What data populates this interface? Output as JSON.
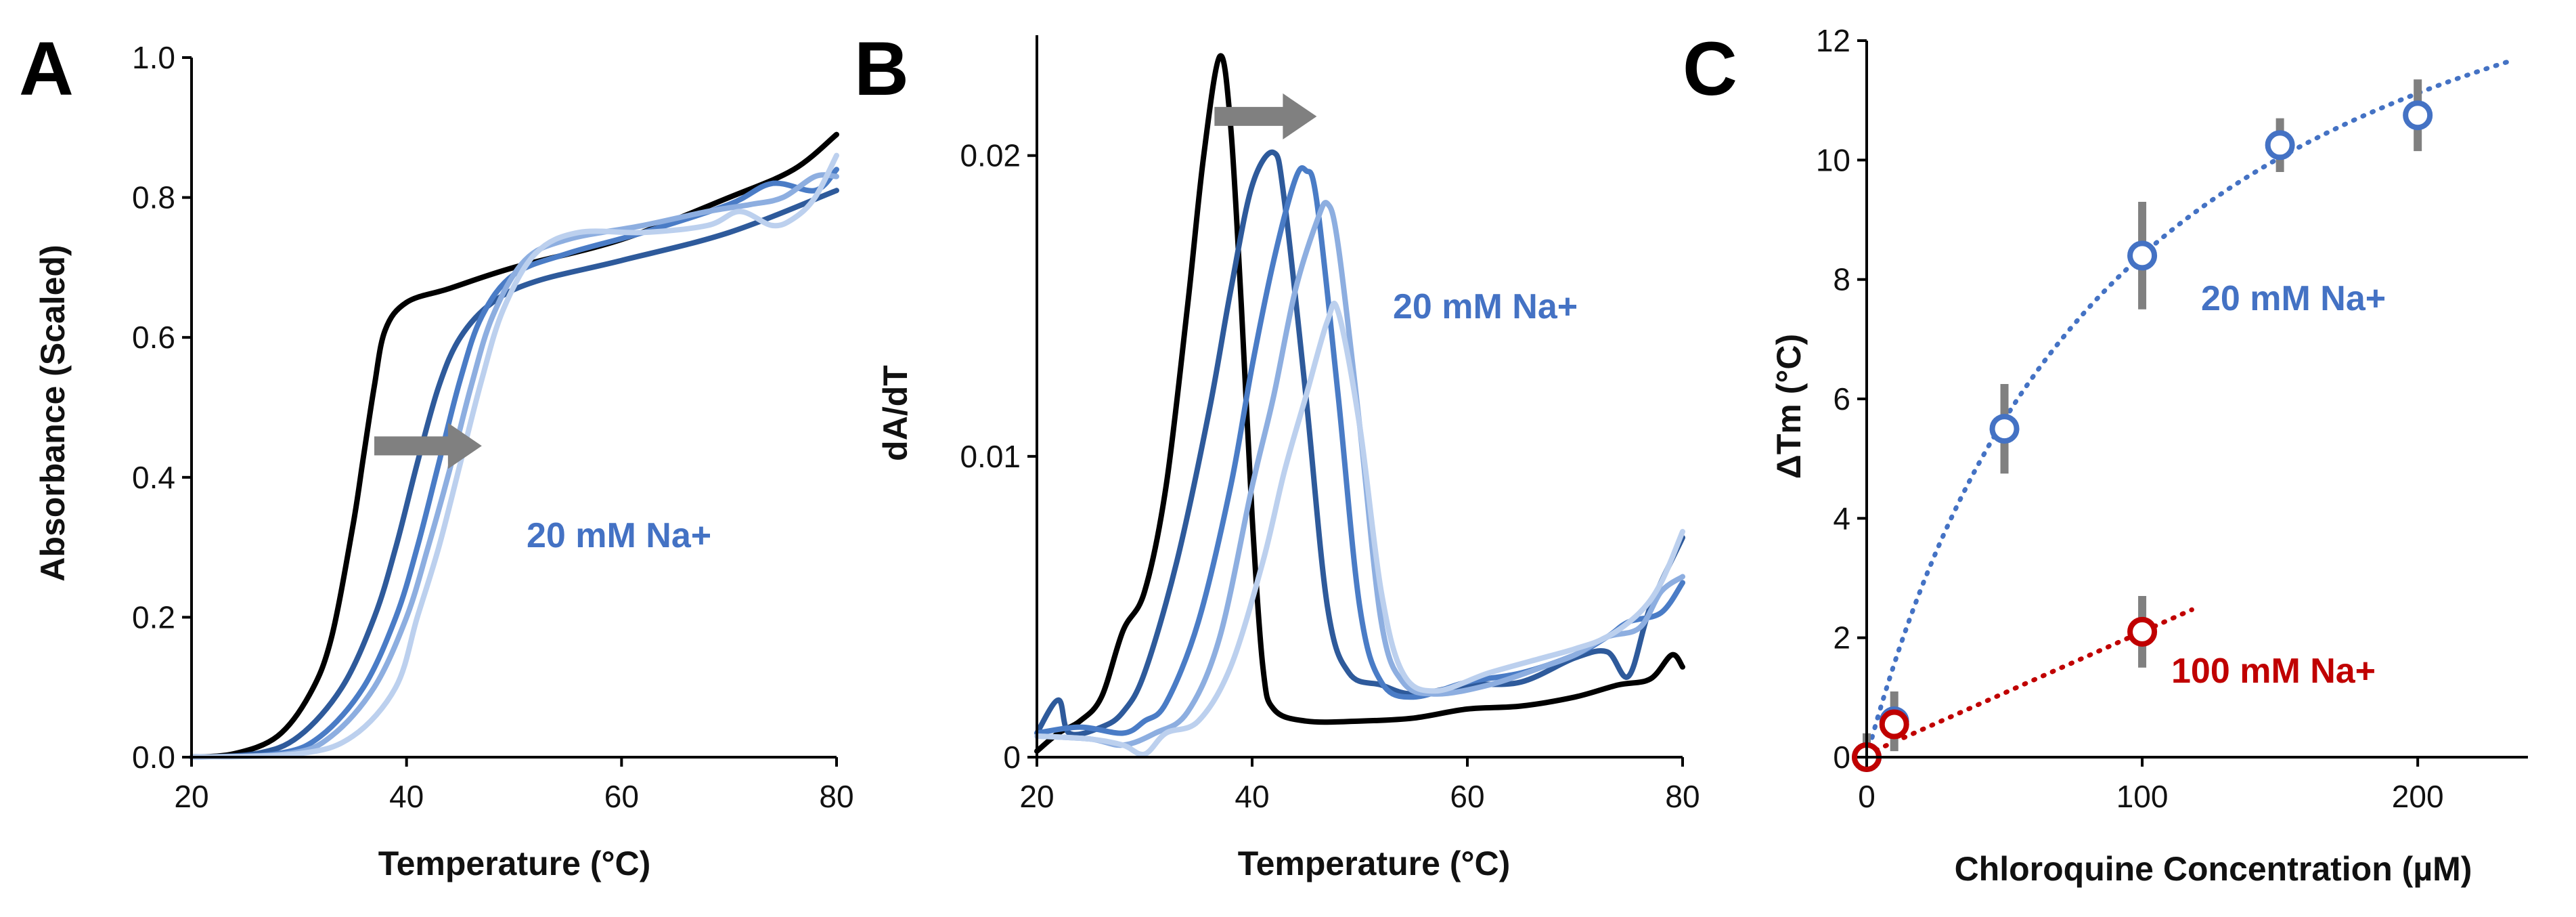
{
  "colors": {
    "black": "#000000",
    "c1": "#2e5a9b",
    "c2": "#4a7cc6",
    "c3": "#8daee0",
    "c4": "#bcd0ee",
    "blue_marker": "#4472c4",
    "red_marker": "#c00000",
    "error_bar": "#808080",
    "arrow": "#808080"
  },
  "chart_data": [
    {
      "panel": "A",
      "type": "line",
      "xlabel": "Temperature (°C)",
      "ylabel": "Absorbance  (Scaled)",
      "xlim": [
        20,
        80
      ],
      "ylim": [
        0,
        1.0
      ],
      "xticks": [
        "20",
        "40",
        "60",
        "80"
      ],
      "yticks": [
        "0.0",
        "0.2",
        "0.4",
        "0.6",
        "0.8",
        "1.0"
      ],
      "annotation": "20 mM Na+",
      "arrow": {
        "x_from": 37,
        "x_to": 47,
        "y": 0.445
      },
      "series": [
        {
          "color": "black",
          "points": [
            [
              20,
              0.0
            ],
            [
              24,
              0.005
            ],
            [
              28,
              0.03
            ],
            [
              31,
              0.09
            ],
            [
              33,
              0.17
            ],
            [
              35,
              0.33
            ],
            [
              36,
              0.43
            ],
            [
              37,
              0.53
            ],
            [
              38,
              0.61
            ],
            [
              40,
              0.65
            ],
            [
              44,
              0.67
            ],
            [
              50,
              0.7
            ],
            [
              60,
              0.74
            ],
            [
              70,
              0.8
            ],
            [
              76,
              0.84
            ],
            [
              80,
              0.89
            ]
          ]
        },
        {
          "color": "c1",
          "points": [
            [
              20,
              0.0
            ],
            [
              26,
              0.005
            ],
            [
              30,
              0.03
            ],
            [
              34,
              0.1
            ],
            [
              37,
              0.2
            ],
            [
              39,
              0.3
            ],
            [
              41,
              0.42
            ],
            [
              43,
              0.53
            ],
            [
              45,
              0.6
            ],
            [
              48,
              0.65
            ],
            [
              52,
              0.68
            ],
            [
              60,
              0.71
            ],
            [
              70,
              0.75
            ],
            [
              80,
              0.81
            ]
          ]
        },
        {
          "color": "c2",
          "points": [
            [
              20,
              0.0
            ],
            [
              28,
              0.005
            ],
            [
              32,
              0.03
            ],
            [
              36,
              0.1
            ],
            [
              39,
              0.2
            ],
            [
              41,
              0.3
            ],
            [
              43,
              0.42
            ],
            [
              45,
              0.54
            ],
            [
              47,
              0.63
            ],
            [
              50,
              0.69
            ],
            [
              55,
              0.72
            ],
            [
              62,
              0.75
            ],
            [
              70,
              0.79
            ],
            [
              74,
              0.82
            ],
            [
              78,
              0.81
            ],
            [
              80,
              0.84
            ]
          ]
        },
        {
          "color": "c3",
          "points": [
            [
              20,
              0.0
            ],
            [
              29,
              0.005
            ],
            [
              33,
              0.03
            ],
            [
              37,
              0.1
            ],
            [
              40,
              0.2
            ],
            [
              42,
              0.3
            ],
            [
              44,
              0.41
            ],
            [
              46,
              0.53
            ],
            [
              48,
              0.63
            ],
            [
              51,
              0.71
            ],
            [
              55,
              0.74
            ],
            [
              62,
              0.76
            ],
            [
              68,
              0.78
            ],
            [
              72,
              0.79
            ],
            [
              75,
              0.8
            ],
            [
              78,
              0.83
            ],
            [
              80,
              0.83
            ]
          ]
        },
        {
          "color": "c4",
          "points": [
            [
              20,
              0.0
            ],
            [
              30,
              0.005
            ],
            [
              35,
              0.03
            ],
            [
              39,
              0.1
            ],
            [
              41,
              0.2
            ],
            [
              43,
              0.3
            ],
            [
              45,
              0.42
            ],
            [
              47,
              0.54
            ],
            [
              49,
              0.64
            ],
            [
              52,
              0.72
            ],
            [
              56,
              0.75
            ],
            [
              62,
              0.75
            ],
            [
              68,
              0.76
            ],
            [
              71,
              0.78
            ],
            [
              74,
              0.76
            ],
            [
              76,
              0.77
            ],
            [
              78,
              0.8
            ],
            [
              80,
              0.86
            ]
          ]
        }
      ]
    },
    {
      "panel": "B",
      "type": "line",
      "xlabel": "Temperature (°C)",
      "ylabel": "dA/dT",
      "xlim": [
        20,
        80
      ],
      "ylim": [
        0,
        0.024
      ],
      "xticks": [
        "20",
        "40",
        "60",
        "80"
      ],
      "yticks": [
        "0",
        "0.01",
        "0.02"
      ],
      "annotation": "20 mM Na+",
      "arrow": {
        "x_from": 36.5,
        "x_to": 46,
        "y": 0.0213
      },
      "series": [
        {
          "color": "black",
          "points": [
            [
              20,
              0.0002
            ],
            [
              22,
              0.0008
            ],
            [
              24,
              0.0012
            ],
            [
              26,
              0.002
            ],
            [
              28,
              0.0042
            ],
            [
              30,
              0.0055
            ],
            [
              32,
              0.009
            ],
            [
              34,
              0.015
            ],
            [
              35.5,
              0.02
            ],
            [
              37,
              0.0233
            ],
            [
              38,
              0.021
            ],
            [
              39,
              0.015
            ],
            [
              40,
              0.008
            ],
            [
              41,
              0.003
            ],
            [
              42,
              0.0016
            ],
            [
              45,
              0.0012
            ],
            [
              50,
              0.0012
            ],
            [
              55,
              0.0013
            ],
            [
              60,
              0.0016
            ],
            [
              65,
              0.0017
            ],
            [
              70,
              0.002
            ],
            [
              74,
              0.0024
            ],
            [
              77,
              0.0026
            ],
            [
              79,
              0.0034
            ],
            [
              80,
              0.003
            ]
          ]
        },
        {
          "color": "c1",
          "points": [
            [
              20,
              0.0008
            ],
            [
              22,
              0.0019
            ],
            [
              23,
              0.0008
            ],
            [
              26,
              0.001
            ],
            [
              28,
              0.0015
            ],
            [
              30,
              0.0028
            ],
            [
              33,
              0.0065
            ],
            [
              36,
              0.0115
            ],
            [
              38,
              0.0155
            ],
            [
              40,
              0.019
            ],
            [
              42,
              0.0201
            ],
            [
              43,
              0.0185
            ],
            [
              45,
              0.012
            ],
            [
              47,
              0.005
            ],
            [
              49,
              0.0028
            ],
            [
              52,
              0.0024
            ],
            [
              55,
              0.0021
            ],
            [
              60,
              0.0024
            ],
            [
              65,
              0.0025
            ],
            [
              70,
              0.0033
            ],
            [
              73,
              0.0035
            ],
            [
              75,
              0.0027
            ],
            [
              77,
              0.005
            ],
            [
              80,
              0.0073
            ]
          ]
        },
        {
          "color": "c2",
          "points": [
            [
              20,
              0.0008
            ],
            [
              24,
              0.001
            ],
            [
              28,
              0.0008
            ],
            [
              30,
              0.0012
            ],
            [
              32,
              0.0018
            ],
            [
              35,
              0.0045
            ],
            [
              38,
              0.009
            ],
            [
              40,
              0.013
            ],
            [
              42,
              0.0165
            ],
            [
              44,
              0.0192
            ],
            [
              45,
              0.0195
            ],
            [
              46,
              0.0185
            ],
            [
              48,
              0.012
            ],
            [
              50,
              0.005
            ],
            [
              52,
              0.0025
            ],
            [
              55,
              0.002
            ],
            [
              60,
              0.0025
            ],
            [
              65,
              0.0028
            ],
            [
              70,
              0.0034
            ],
            [
              73,
              0.004
            ],
            [
              75,
              0.0045
            ],
            [
              78,
              0.0048
            ],
            [
              80,
              0.0058
            ]
          ]
        },
        {
          "color": "c3",
          "points": [
            [
              20,
              0.0007
            ],
            [
              25,
              0.0006
            ],
            [
              28,
              0.0004
            ],
            [
              31,
              0.0008
            ],
            [
              34,
              0.0015
            ],
            [
              37,
              0.004
            ],
            [
              40,
              0.009
            ],
            [
              42,
              0.012
            ],
            [
              44,
              0.0155
            ],
            [
              46,
              0.0178
            ],
            [
              47,
              0.0184
            ],
            [
              48,
              0.017
            ],
            [
              50,
              0.011
            ],
            [
              52,
              0.0045
            ],
            [
              54,
              0.0025
            ],
            [
              57,
              0.0021
            ],
            [
              62,
              0.0024
            ],
            [
              67,
              0.003
            ],
            [
              70,
              0.0034
            ],
            [
              73,
              0.004
            ],
            [
              76,
              0.0043
            ],
            [
              78,
              0.0055
            ],
            [
              80,
              0.006
            ]
          ]
        },
        {
          "color": "c4",
          "points": [
            [
              20,
              0.0007
            ],
            [
              25,
              0.0006
            ],
            [
              28,
              0.0004
            ],
            [
              30,
              0.0001
            ],
            [
              32,
              0.0008
            ],
            [
              35,
              0.0012
            ],
            [
              38,
              0.003
            ],
            [
              41,
              0.0065
            ],
            [
              43,
              0.0095
            ],
            [
              45,
              0.012
            ],
            [
              47,
              0.0145
            ],
            [
              48,
              0.0148
            ],
            [
              50,
              0.011
            ],
            [
              52,
              0.0055
            ],
            [
              54,
              0.0028
            ],
            [
              57,
              0.0022
            ],
            [
              62,
              0.0028
            ],
            [
              67,
              0.0033
            ],
            [
              70,
              0.0036
            ],
            [
              73,
              0.004
            ],
            [
              76,
              0.0048
            ],
            [
              78,
              0.0058
            ],
            [
              80,
              0.0075
            ]
          ]
        }
      ]
    },
    {
      "panel": "C",
      "type": "scatter",
      "xlabel": "Chloroquine Concentration (µM)",
      "ylabel": "ΔTm (°C)",
      "xlim": [
        0,
        240
      ],
      "ylim": [
        0,
        12
      ],
      "xticks": [
        "0",
        "100",
        "200"
      ],
      "yticks": [
        "0",
        "2",
        "4",
        "6",
        "8",
        "10",
        "12"
      ],
      "series": [
        {
          "name": "20 mM Na+",
          "color": "blue_marker",
          "points": [
            {
              "x": 0,
              "y": 0,
              "err": 0.4
            },
            {
              "x": 10,
              "y": 0.6,
              "err": 0.5
            },
            {
              "x": 50,
              "y": 5.5,
              "err": 0.75
            },
            {
              "x": 100,
              "y": 8.4,
              "err": 0.9
            },
            {
              "x": 150,
              "y": 10.25,
              "err": 0.45
            },
            {
              "x": 200,
              "y": 10.75,
              "err": 0.6
            }
          ],
          "fit": {
            "type": "saturation",
            "a": 16.4,
            "k": 95,
            "x_range": [
              0,
              235
            ]
          }
        },
        {
          "name": "100 mM Na+",
          "color": "red_marker",
          "points": [
            {
              "x": 0,
              "y": 0,
              "err": 0.1
            },
            {
              "x": 10,
              "y": 0.55,
              "err": 0.2
            },
            {
              "x": 100,
              "y": 2.1,
              "err": 0.6
            }
          ],
          "fit": {
            "type": "linear",
            "slope": 0.0205,
            "intercept": 0.05,
            "x_range": [
              0,
              118
            ]
          }
        }
      ]
    }
  ]
}
